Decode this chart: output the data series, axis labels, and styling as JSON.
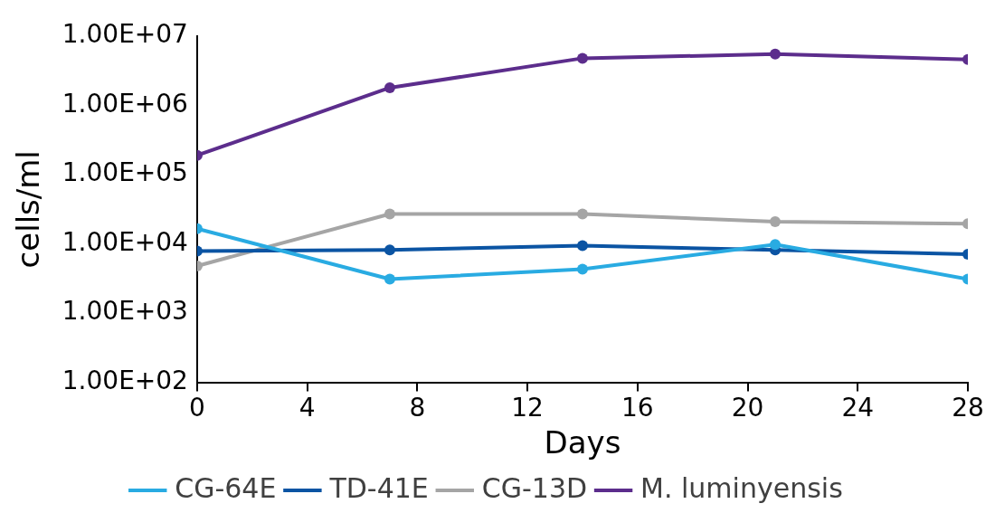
{
  "chart_data": {
    "type": "line",
    "xlabel": "Days",
    "ylabel": "cells/ml",
    "log": "y",
    "x": [
      0,
      7,
      14,
      21,
      28
    ],
    "xlim": [
      0,
      28
    ],
    "xticks": [
      0,
      4,
      8,
      12,
      16,
      20,
      24,
      28
    ],
    "ylim": [
      100,
      10000000
    ],
    "yticks": [
      {
        "value": 100,
        "label": "1.00E+02"
      },
      {
        "value": 1000,
        "label": "1.00E+03"
      },
      {
        "value": 10000,
        "label": "1.00E+04"
      },
      {
        "value": 100000,
        "label": "1.00E+05"
      },
      {
        "value": 1000000,
        "label": "1.00E+06"
      },
      {
        "value": 10000000,
        "label": "1.00E+07"
      }
    ],
    "grid": false,
    "legend": "bottom",
    "marker": "circle",
    "line_style": "solid",
    "series": [
      {
        "name": "CG-64E",
        "color": "#29abe2",
        "values": [
          16600,
          3100,
          4300,
          9800,
          3100
        ]
      },
      {
        "name": "TD-41E",
        "color": "#0b54a3",
        "values": [
          7900,
          8200,
          9400,
          8200,
          7100
        ]
      },
      {
        "name": "CG-13D",
        "color": "#a5a5a5",
        "values": [
          4800,
          27000,
          27000,
          21000,
          19500
        ]
      },
      {
        "name": "M. luminyensis",
        "color": "#5c2d8c",
        "values": [
          190000,
          1800000,
          4800000,
          5500000,
          4600000
        ]
      }
    ]
  }
}
